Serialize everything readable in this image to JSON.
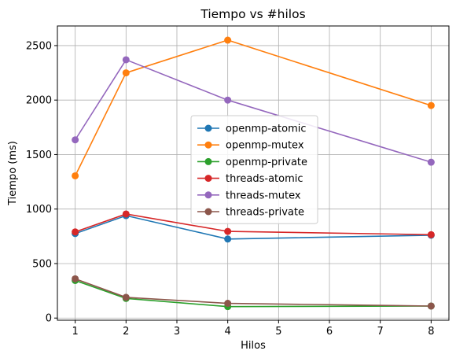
{
  "chart_data": {
    "type": "line",
    "title": "Tiempo vs #hilos",
    "xlabel": "Hilos",
    "ylabel": "Tiempo (ms)",
    "x": [
      1,
      2,
      4,
      8
    ],
    "xlim": [
      0.65,
      8.35
    ],
    "ylim": [
      -20,
      2680
    ],
    "xticks": [
      1,
      2,
      3,
      4,
      5,
      6,
      7,
      8
    ],
    "yticks": [
      0,
      500,
      1000,
      1500,
      2000,
      2500
    ],
    "grid": true,
    "legend_position": "center",
    "series": [
      {
        "name": "openmp-atomic",
        "color": "#1f77b4",
        "values": [
          775,
          940,
          725,
          760
        ]
      },
      {
        "name": "openmp-mutex",
        "color": "#ff7f0e",
        "values": [
          1305,
          2250,
          2550,
          1950
        ]
      },
      {
        "name": "openmp-private",
        "color": "#2ca02c",
        "values": [
          345,
          180,
          105,
          110
        ]
      },
      {
        "name": "threads-atomic",
        "color": "#d62728",
        "values": [
          790,
          955,
          795,
          765
        ]
      },
      {
        "name": "threads-mutex",
        "color": "#9467bd",
        "values": [
          1635,
          2370,
          2000,
          1430
        ]
      },
      {
        "name": "threads-private",
        "color": "#8c564b",
        "values": [
          360,
          190,
          135,
          110
        ]
      }
    ]
  }
}
